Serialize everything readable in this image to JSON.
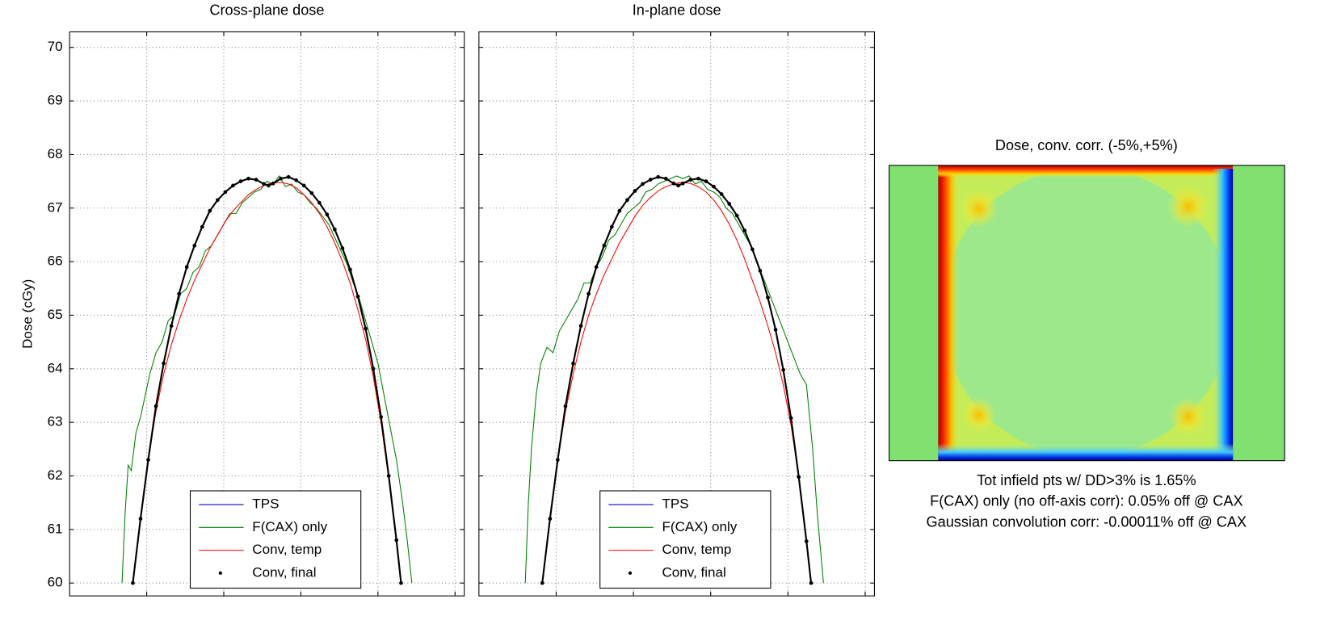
{
  "chart_data": [
    {
      "type": "line",
      "title": "Cross-plane dose",
      "ylabel": "Dose (cGy)",
      "xlim": [
        -15,
        10.6
      ],
      "xticks": [
        -10,
        -5,
        0,
        5,
        10
      ],
      "ylim": [
        59.76,
        70.29
      ],
      "yticks": [
        60,
        61,
        62,
        63,
        64,
        65,
        66,
        67,
        68,
        69,
        70
      ],
      "ytick_labels": true,
      "grid": true,
      "legend": "lower center",
      "x": [
        -10.9,
        -10.4,
        -9.9,
        -9.4,
        -8.9,
        -8.4,
        -7.9,
        -7.4,
        -6.9,
        -6.4,
        -5.9,
        -5.4,
        -4.9,
        -4.4,
        -3.9,
        -3.4,
        -2.9,
        -2.4,
        -2.1,
        -1.8,
        -1.3,
        -0.8,
        -0.3,
        0.2,
        0.7,
        1.2,
        1.7,
        2.2,
        2.7,
        3.2,
        3.7,
        4.2,
        4.7,
        5.2,
        5.7,
        6.2,
        6.5
      ],
      "series": [
        {
          "name": "TPS",
          "color": "#0000c8",
          "values": [
            60,
            61.2,
            62.3,
            63.3,
            64.1,
            64.8,
            65.4,
            65.9,
            66.3,
            66.65,
            66.95,
            67.15,
            67.3,
            67.42,
            67.5,
            67.55,
            67.53,
            67.45,
            67.42,
            67.46,
            67.55,
            67.58,
            67.52,
            67.42,
            67.28,
            67.1,
            66.88,
            66.6,
            66.25,
            65.85,
            65.35,
            64.75,
            64.0,
            63.1,
            62.0,
            60.8,
            60.0
          ]
        },
        {
          "name": "F(CAX) only",
          "color": "#008000",
          "x": [
            -11.6,
            -11.4,
            -11.2,
            -11.0,
            -10.7,
            -10.4,
            -10.1,
            -9.8,
            -9.4,
            -9.0,
            -8.6,
            -8.2,
            -7.8,
            -7.4,
            -7.0,
            -6.6,
            -6.2,
            -5.8,
            -5.4,
            -5.0,
            -4.6,
            -4.2,
            -3.8,
            -3.4,
            -3.0,
            -2.6,
            -2.2,
            -1.8,
            -1.4,
            -1.0,
            -0.6,
            -0.2,
            0.2,
            0.6,
            1.0,
            1.4,
            1.8,
            2.2,
            2.6,
            3.0,
            3.4,
            3.8,
            4.2,
            4.6,
            5.0,
            5.4,
            5.8,
            6.2,
            6.6,
            6.9,
            7.2
          ],
          "values": [
            60,
            61.3,
            62.2,
            62.1,
            62.8,
            63.1,
            63.5,
            63.9,
            64.3,
            64.5,
            64.9,
            65.0,
            65.4,
            65.5,
            65.8,
            65.9,
            66.2,
            66.3,
            66.5,
            66.7,
            66.9,
            66.9,
            67.1,
            67.2,
            67.3,
            67.35,
            67.5,
            67.45,
            67.6,
            67.4,
            67.45,
            67.3,
            67.25,
            67.1,
            67.0,
            66.85,
            66.7,
            66.45,
            66.2,
            65.95,
            65.6,
            65.3,
            64.9,
            64.5,
            64.1,
            63.5,
            62.9,
            62.3,
            61.5,
            60.8,
            60.0
          ]
        },
        {
          "name": "Conv, temp",
          "color": "#ff0000",
          "values": [
            60,
            61.2,
            62.3,
            63.2,
            63.9,
            64.45,
            64.9,
            65.3,
            65.65,
            65.95,
            66.25,
            66.5,
            66.75,
            66.95,
            67.1,
            67.25,
            67.35,
            67.42,
            67.45,
            67.47,
            67.48,
            67.45,
            67.38,
            67.25,
            67.1,
            66.9,
            66.65,
            66.35,
            66.0,
            65.6,
            65.1,
            64.55,
            63.85,
            63.0,
            61.95,
            60.75,
            60.0
          ]
        },
        {
          "name": "Conv, final",
          "color": "#000000",
          "marker": true,
          "values": [
            60,
            61.2,
            62.3,
            63.3,
            64.1,
            64.8,
            65.4,
            65.9,
            66.3,
            66.65,
            66.95,
            67.15,
            67.3,
            67.42,
            67.5,
            67.55,
            67.53,
            67.45,
            67.42,
            67.46,
            67.55,
            67.58,
            67.52,
            67.42,
            67.28,
            67.1,
            66.88,
            66.6,
            66.25,
            65.85,
            65.35,
            64.75,
            64.0,
            63.1,
            62.0,
            60.8,
            60.0
          ]
        }
      ]
    },
    {
      "type": "line",
      "title": "In-plane dose",
      "xlim": [
        -15,
        10.6
      ],
      "xticks": [
        -10,
        -5,
        0,
        5,
        10
      ],
      "ylim": [
        59.76,
        70.29
      ],
      "yticks": [
        60,
        61,
        62,
        63,
        64,
        65,
        66,
        67,
        68,
        69,
        70
      ],
      "ytick_labels": false,
      "grid": true,
      "legend": "lower center",
      "x": [
        -10.9,
        -10.4,
        -9.9,
        -9.4,
        -8.9,
        -8.4,
        -7.9,
        -7.4,
        -6.9,
        -6.4,
        -5.9,
        -5.4,
        -4.9,
        -4.4,
        -3.9,
        -3.4,
        -2.9,
        -2.4,
        -2.1,
        -1.8,
        -1.3,
        -0.8,
        -0.3,
        0.2,
        0.7,
        1.2,
        1.7,
        2.2,
        2.7,
        3.2,
        3.7,
        4.2,
        4.7,
        5.2,
        5.7,
        6.2,
        6.5
      ],
      "series": [
        {
          "name": "TPS",
          "color": "#0000c8",
          "values": [
            60,
            61.2,
            62.3,
            63.3,
            64.1,
            64.8,
            65.4,
            65.9,
            66.3,
            66.65,
            66.95,
            67.15,
            67.32,
            67.45,
            67.53,
            67.58,
            67.55,
            67.46,
            67.42,
            67.46,
            67.53,
            67.55,
            67.5,
            67.4,
            67.26,
            67.08,
            66.86,
            66.58,
            66.23,
            65.83,
            65.33,
            64.73,
            63.98,
            63.08,
            61.98,
            60.78,
            60.0
          ]
        },
        {
          "name": "F(CAX) only",
          "color": "#008000",
          "x": [
            -12.0,
            -11.8,
            -11.6,
            -11.3,
            -11.0,
            -10.6,
            -10.2,
            -9.8,
            -9.4,
            -9.0,
            -8.6,
            -8.2,
            -7.8,
            -7.4,
            -7.0,
            -6.6,
            -6.2,
            -5.8,
            -5.4,
            -5.0,
            -4.6,
            -4.2,
            -3.8,
            -3.4,
            -3.0,
            -2.6,
            -2.2,
            -1.8,
            -1.4,
            -1.0,
            -0.6,
            -0.2,
            0.2,
            0.6,
            1.0,
            1.4,
            1.8,
            2.2,
            2.6,
            3.0,
            3.4,
            3.8,
            4.2,
            4.6,
            5.0,
            5.4,
            5.8,
            6.2,
            6.6,
            6.9,
            7.3
          ],
          "values": [
            60,
            61.5,
            62.5,
            63.5,
            64.1,
            64.4,
            64.3,
            64.7,
            64.9,
            65.1,
            65.3,
            65.6,
            65.6,
            65.9,
            66.1,
            66.4,
            66.5,
            66.7,
            66.9,
            67.0,
            67.1,
            67.3,
            67.35,
            67.45,
            67.5,
            67.55,
            67.6,
            67.55,
            67.6,
            67.45,
            67.5,
            67.35,
            67.3,
            67.2,
            67.0,
            66.9,
            66.7,
            66.5,
            66.3,
            66.0,
            65.7,
            65.4,
            65.1,
            64.8,
            64.5,
            64.2,
            63.9,
            63.7,
            62.5,
            61.3,
            60.0
          ]
        },
        {
          "name": "Conv, temp",
          "color": "#ff0000",
          "values": [
            60,
            61.2,
            62.3,
            63.2,
            63.9,
            64.5,
            65.0,
            65.4,
            65.75,
            66.05,
            66.35,
            66.6,
            66.85,
            67.05,
            67.2,
            67.32,
            67.4,
            67.45,
            67.47,
            67.48,
            67.46,
            67.4,
            67.3,
            67.15,
            66.95,
            66.7,
            66.4,
            66.05,
            65.65,
            65.25,
            64.8,
            64.3,
            63.7,
            62.95,
            62.0,
            60.8,
            60.0
          ]
        },
        {
          "name": "Conv, final",
          "color": "#000000",
          "marker": true,
          "values": [
            60,
            61.2,
            62.3,
            63.3,
            64.1,
            64.8,
            65.4,
            65.9,
            66.3,
            66.65,
            66.95,
            67.15,
            67.32,
            67.45,
            67.53,
            67.58,
            67.55,
            67.46,
            67.42,
            67.46,
            67.53,
            67.55,
            67.5,
            67.4,
            67.26,
            67.08,
            66.86,
            66.58,
            66.23,
            65.83,
            65.33,
            64.73,
            63.98,
            63.08,
            61.98,
            60.78,
            60.0
          ]
        }
      ]
    }
  ],
  "heatmap": {
    "title": "Dose, conv. corr. (-5%,+5%)",
    "notes": [
      "Tot infield pts w/ DD>3% is 1.65%",
      "F(CAX) only (no off-axis corr): 0.05% off @ CAX",
      "Gaussian convolution corr: -0.00011% off @ CAX"
    ]
  }
}
